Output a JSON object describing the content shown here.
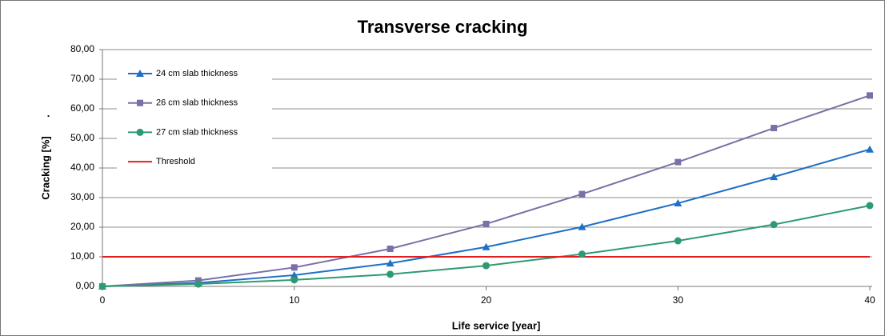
{
  "chart_data": {
    "type": "line",
    "title": "Transverse cracking",
    "xlabel": "Life service [year]",
    "ylabel": "Cracking [%]",
    "annotations": [
      "."
    ],
    "x": [
      0,
      5,
      10,
      15,
      20,
      25,
      30,
      35,
      40
    ],
    "series": [
      {
        "name": "24 cm slab thickness",
        "color": "#1f6fc6",
        "marker": "triangle",
        "values": [
          0,
          1.2,
          3.8,
          7.8,
          13.3,
          20.1,
          28.1,
          37.0,
          46.3
        ]
      },
      {
        "name": "26 cm slab thickness",
        "color": "#7a6fa6",
        "marker": "square",
        "values": [
          0,
          2.0,
          6.4,
          12.7,
          21.1,
          31.2,
          42.0,
          53.5,
          64.5
        ]
      },
      {
        "name": "27 cm slab thickness",
        "color": "#2e9a72",
        "marker": "circle",
        "values": [
          0,
          0.8,
          2.2,
          4.1,
          7.0,
          10.9,
          15.4,
          20.9,
          27.3
        ]
      },
      {
        "name": "Threshold",
        "color": "#e02020",
        "marker": "none",
        "values": [
          10,
          10,
          10,
          10,
          10,
          10,
          10,
          10,
          10
        ]
      }
    ],
    "xlim": [
      0,
      40
    ],
    "xticks": [
      0,
      10,
      20,
      30,
      40
    ],
    "ylim": [
      0,
      80
    ],
    "yticks": [
      {
        "value": 0,
        "label": "0,00"
      },
      {
        "value": 10,
        "label": "10,00"
      },
      {
        "value": 20,
        "label": "20,00"
      },
      {
        "value": 30,
        "label": "30,00"
      },
      {
        "value": 40,
        "label": "40,00"
      },
      {
        "value": 50,
        "label": "50,00"
      },
      {
        "value": 60,
        "label": "60,00"
      },
      {
        "value": 70,
        "label": "70,00"
      },
      {
        "value": 80,
        "label": "80,00"
      }
    ],
    "grid": true,
    "legend": "upper left"
  }
}
